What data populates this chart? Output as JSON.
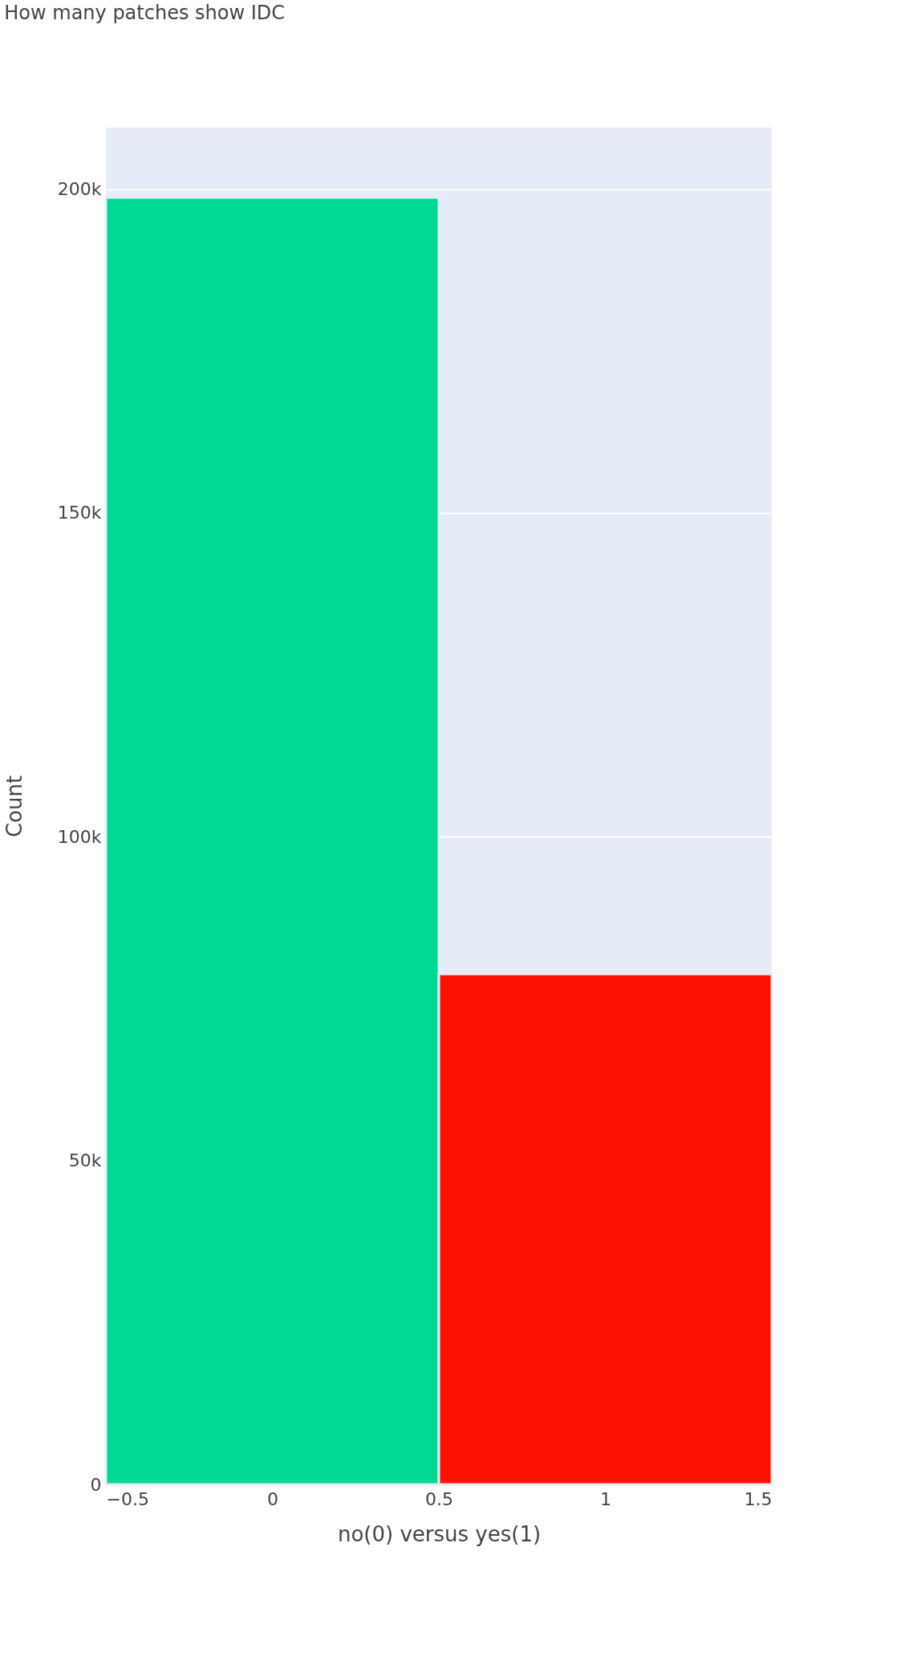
{
  "chart_data": {
    "type": "histogram",
    "title": "How many patches show IDC",
    "xlabel": "no(0)    versus    yes(1)",
    "ylabel": "Count",
    "bins": [
      -0.5,
      0.5,
      1.5
    ],
    "values": [
      198700,
      78800
    ],
    "colors": [
      "#00d994",
      "#ff1100"
    ],
    "xlim": [
      -0.5,
      1.5
    ],
    "xticks": [
      -0.5,
      0,
      0.5,
      1,
      1.5
    ],
    "ylim": [
      0,
      209500
    ],
    "yticks": [
      {
        "value": 0,
        "label": "0"
      },
      {
        "value": 50000,
        "label": "50k"
      },
      {
        "value": 100000,
        "label": "100k"
      },
      {
        "value": 150000,
        "label": "150k"
      },
      {
        "value": 200000,
        "label": "200k"
      }
    ],
    "grid": "y"
  }
}
